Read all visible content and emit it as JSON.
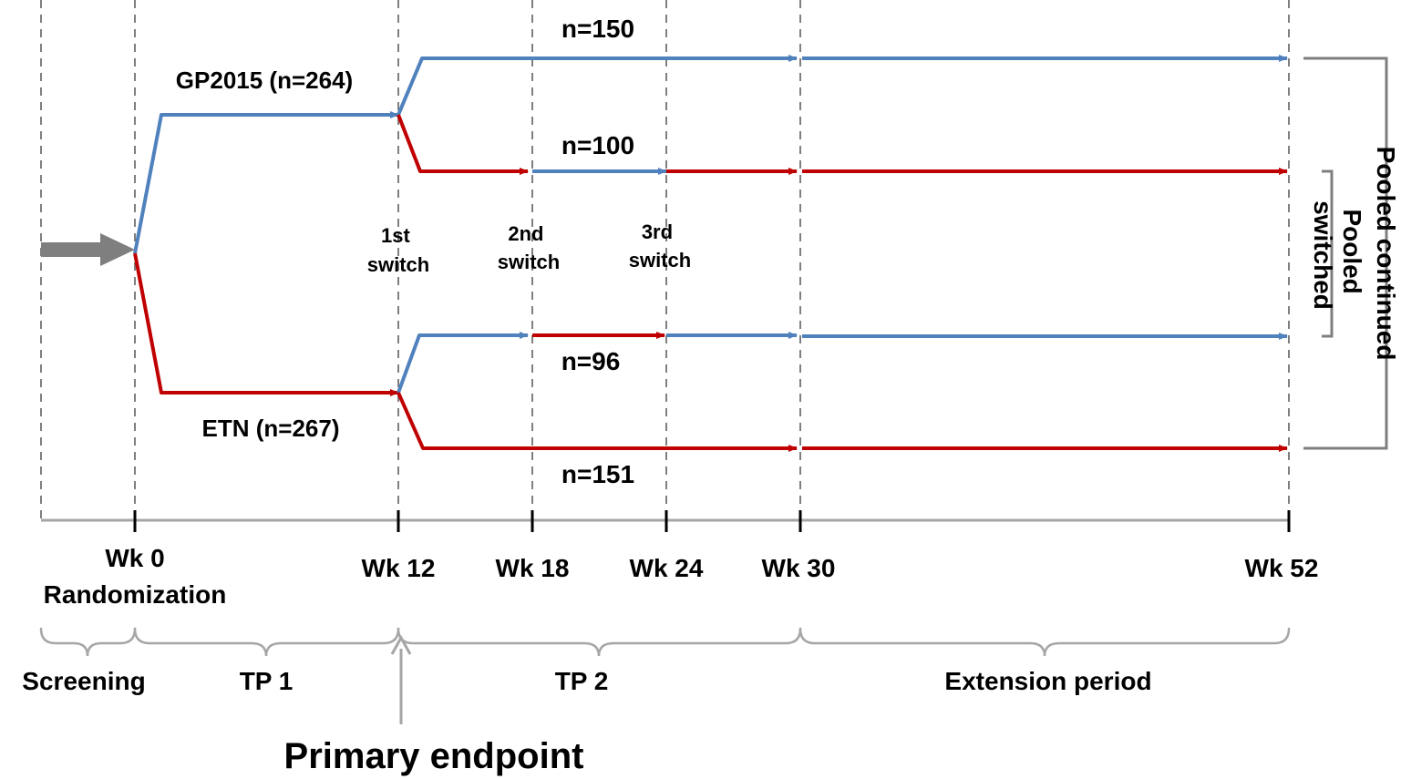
{
  "colors": {
    "gp2015": "#4f81bd",
    "etn": "#c00000",
    "guide": "#7f7f7f",
    "axis": "#a6a6a6",
    "text": "#000000"
  },
  "arms": {
    "gp2015": "GP2015 (n=264)",
    "etn": "ETN (n=267)"
  },
  "groups": {
    "gp_continued": "n=150",
    "gp_switched": "n=100",
    "etn_switched": "n=96",
    "etn_continued": "n=151"
  },
  "switches": {
    "first": [
      "1st",
      "switch"
    ],
    "second": [
      "2nd",
      "switch"
    ],
    "third": [
      "3rd",
      "switch"
    ]
  },
  "timepoints": {
    "wk0": "Wk 0",
    "randomization": "Randomization",
    "wk12": "Wk 12",
    "wk18": "Wk 18",
    "wk24": "Wk 24",
    "wk30": "Wk 30",
    "wk52": "Wk 52"
  },
  "periods": {
    "screening": "Screening",
    "tp1": "TP 1",
    "tp2": "TP 2",
    "extension": "Extension period"
  },
  "primary_endpoint": "Primary endpoint",
  "pooled": {
    "continued": "Pooled continued",
    "switched": [
      "Pooled",
      "switched"
    ]
  }
}
